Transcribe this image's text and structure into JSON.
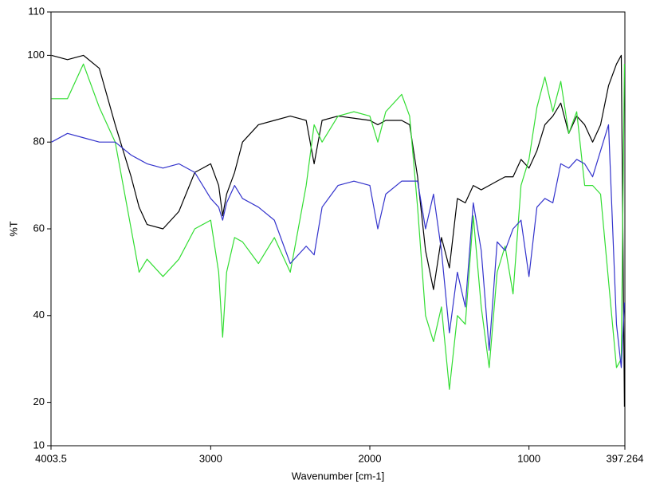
{
  "chart_data": {
    "type": "line",
    "xlabel": "Wavenumber [cm-1]",
    "ylabel": "%T",
    "x": [
      4000,
      3900,
      3800,
      3700,
      3600,
      3500,
      3450,
      3400,
      3300,
      3200,
      3100,
      3000,
      2950,
      2925,
      2900,
      2850,
      2800,
      2700,
      2600,
      2500,
      2400,
      2350,
      2300,
      2200,
      2100,
      2000,
      1950,
      1900,
      1800,
      1750,
      1700,
      1650,
      1600,
      1550,
      1500,
      1450,
      1400,
      1350,
      1300,
      1250,
      1200,
      1150,
      1100,
      1050,
      1000,
      950,
      900,
      850,
      800,
      750,
      700,
      650,
      600,
      550,
      500,
      450,
      420,
      400
    ],
    "series": [
      {
        "color": "#000000",
        "values": [
          100,
          99,
          100,
          97,
          84,
          72,
          65,
          61,
          60,
          64,
          73,
          75,
          70,
          63,
          68,
          73,
          80,
          84,
          85,
          86,
          85,
          75,
          85,
          86,
          85.5,
          85,
          84,
          85,
          85,
          84,
          72,
          55,
          46,
          58,
          51,
          67,
          66,
          70,
          69,
          70,
          71,
          72,
          72,
          76,
          74,
          78,
          84,
          86,
          89,
          82,
          86,
          84,
          80,
          84,
          93,
          98,
          100,
          19
        ]
      },
      {
        "color": "#33dd33",
        "values": [
          90,
          90,
          98,
          88,
          80,
          60,
          50,
          53,
          49,
          53,
          60,
          62,
          50,
          35,
          50,
          58,
          57,
          52,
          58,
          50,
          70,
          84,
          80,
          86,
          87,
          86,
          80,
          87,
          91,
          86,
          65,
          40,
          34,
          42,
          23,
          40,
          38,
          63,
          42,
          28,
          50,
          56,
          45,
          70,
          76,
          88,
          95,
          87,
          94,
          82,
          87,
          70,
          70,
          68,
          48,
          28,
          30,
          98
        ]
      },
      {
        "color": "#3333cc",
        "values": [
          80,
          82,
          81,
          80,
          80,
          77,
          76,
          75,
          74,
          75,
          73,
          67,
          65,
          62,
          66,
          70,
          67,
          65,
          62,
          52,
          56,
          54,
          65,
          70,
          71,
          70,
          60,
          68,
          71,
          71,
          71,
          60,
          68,
          55,
          36,
          50,
          42,
          66,
          55,
          32,
          57,
          55,
          60,
          62,
          49,
          65,
          67,
          66,
          75,
          74,
          76,
          75,
          72,
          78,
          84,
          38,
          28,
          43
        ]
      }
    ],
    "xlim": [
      4003.5,
      397.264
    ],
    "xticks": [
      4003.5,
      3000,
      2000,
      1000,
      397.264
    ],
    "ylim": [
      10,
      110
    ],
    "yticks": [
      10,
      20,
      40,
      60,
      80,
      100,
      110
    ]
  }
}
